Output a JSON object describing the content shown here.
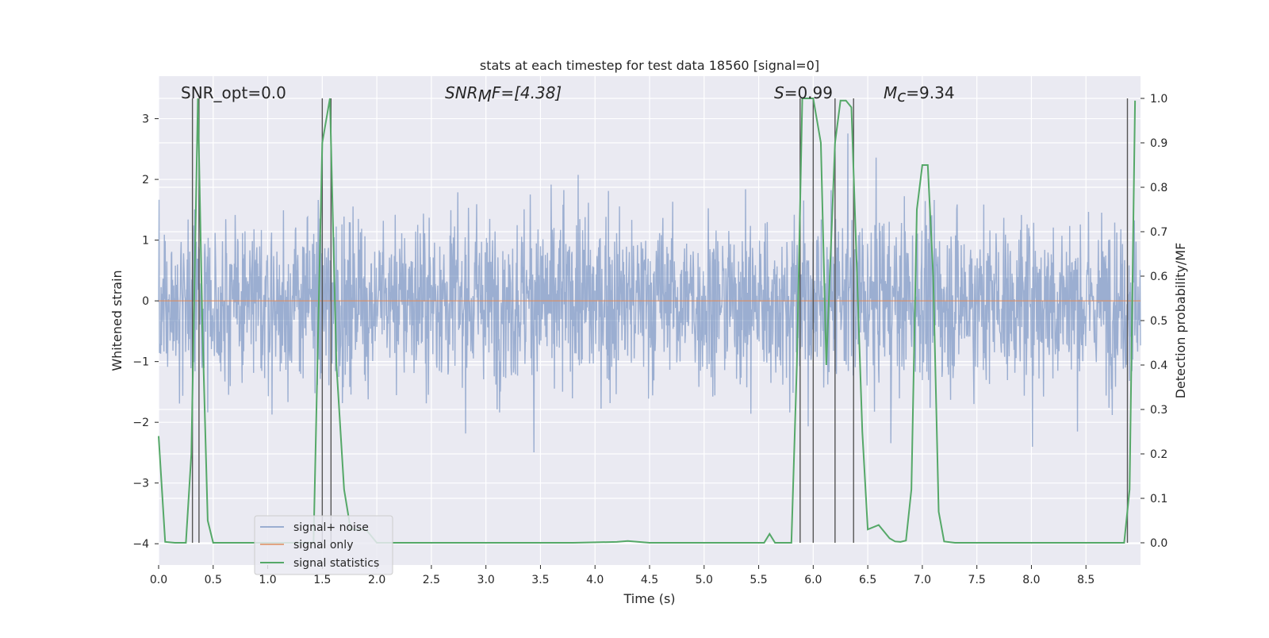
{
  "chart_data": {
    "type": "line",
    "title": "stats at each timestep for test data 18560 [signal=0]",
    "xlabel": "Time (s)",
    "ylabel_left": "Whitened strain",
    "ylabel_right": "Detection probability/MF",
    "xlim": [
      0.0,
      9.0
    ],
    "ylim_left": [
      -4.35,
      3.7
    ],
    "ylim_right": [
      -0.05,
      1.05
    ],
    "x_ticks": [
      "0.0",
      "0.5",
      "1.0",
      "1.5",
      "2.0",
      "2.5",
      "3.0",
      "3.5",
      "4.0",
      "4.5",
      "5.0",
      "5.5",
      "6.0",
      "6.5",
      "7.0",
      "7.5",
      "8.0",
      "8.5"
    ],
    "y_ticks_left": [
      "−4",
      "−3",
      "−2",
      "−1",
      "0",
      "1",
      "2",
      "3"
    ],
    "y_ticks_right": [
      "0.0",
      "0.1",
      "0.2",
      "0.3",
      "0.4",
      "0.5",
      "0.6",
      "0.7",
      "0.8",
      "0.9",
      "1.0"
    ],
    "grid": true,
    "legend_position": "lower-left",
    "legend": [
      "signal+ noise",
      "signal only",
      "signal statistics"
    ],
    "annotations": {
      "snr_opt": "SNR_opt=0.0",
      "snr_mf_main": "SNR",
      "snr_mf_sub": "M",
      "snr_mf_rest": "F=[4.38]",
      "s_sym": "S",
      "s_val": "=0.99",
      "mc_sym": "M",
      "mc_sub": "c",
      "mc_val": "=9.34"
    },
    "series": [
      {
        "name": "signal+ noise",
        "color": "#4c72b0",
        "description_values": "Gaussian-like whitened strain noise, amplitude about ±1.8 with spikes to ±3"
      },
      {
        "name": "signal only",
        "color": "#dd8452",
        "x": [
          0.0,
          9.0
        ],
        "y": [
          0.0,
          0.0
        ]
      },
      {
        "name": "signal statistics",
        "color": "#55a868",
        "x": [
          0.0,
          0.06,
          0.15,
          0.25,
          0.3,
          0.36,
          0.4,
          0.45,
          0.5,
          1.42,
          1.5,
          1.57,
          1.63,
          1.7,
          1.76,
          1.9,
          2.0,
          3.8,
          4.2,
          4.3,
          4.4,
          4.5,
          5.55,
          5.6,
          5.65,
          5.8,
          5.85,
          5.9,
          5.95,
          6.0,
          6.07,
          6.12,
          6.2,
          6.25,
          6.3,
          6.35,
          6.45,
          6.5,
          6.6,
          6.7,
          6.75,
          6.8,
          6.85,
          6.9,
          6.95,
          7.0,
          7.05,
          7.1,
          7.15,
          7.2,
          7.3,
          8.85,
          8.9,
          8.95
        ],
        "y": [
          0.24,
          0.002,
          0.0,
          0.0,
          0.2,
          1.0,
          0.5,
          0.05,
          0.0,
          0.0,
          0.9,
          1.0,
          0.4,
          0.12,
          0.03,
          0.03,
          0.0,
          0.0,
          0.002,
          0.004,
          0.002,
          0.0,
          0.0,
          0.02,
          0.0,
          0.0,
          0.4,
          1.0,
          1.0,
          1.0,
          0.9,
          0.4,
          0.9,
          0.995,
          0.995,
          0.98,
          0.25,
          0.03,
          0.04,
          0.01,
          0.003,
          0.002,
          0.005,
          0.12,
          0.75,
          0.85,
          0.85,
          0.6,
          0.07,
          0.003,
          0.0,
          0.0,
          0.12,
          0.995
        ]
      }
    ],
    "vertical_markers_x": [
      0.31,
      0.37,
      1.5,
      1.58,
      5.88,
      6.0,
      6.2,
      6.37,
      8.88
    ]
  }
}
